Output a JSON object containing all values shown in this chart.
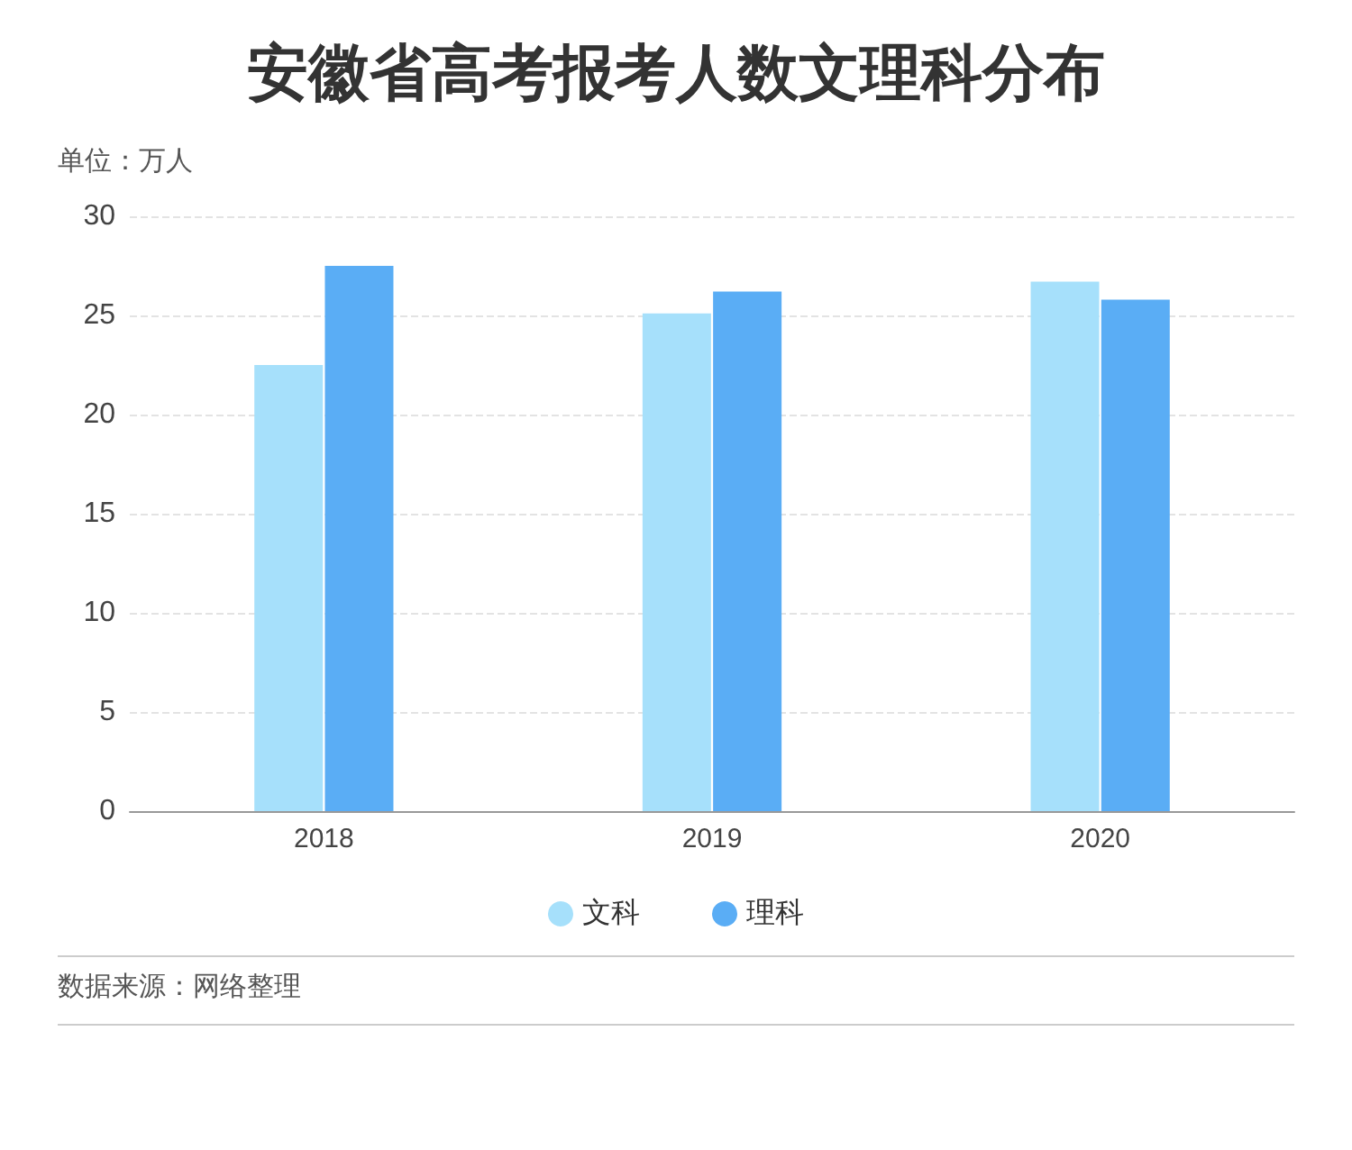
{
  "chart_data": {
    "type": "bar",
    "title": "安徽省高考报考人数文理科分布",
    "ylabel": "单位：万人",
    "categories": [
      "2018",
      "2019",
      "2020"
    ],
    "series": [
      {
        "name": "文科",
        "color": "#a6e0fb",
        "values": [
          22.5,
          25.1,
          26.7
        ]
      },
      {
        "name": "理科",
        "color": "#5aadf5",
        "values": [
          27.5,
          26.2,
          25.8
        ]
      }
    ],
    "ylim": [
      0,
      30
    ],
    "yticks": [
      0,
      5,
      10,
      15,
      20,
      25,
      30
    ],
    "grid": "y",
    "legend": "bottom",
    "annotations": [
      "数据来源：网络整理"
    ]
  }
}
